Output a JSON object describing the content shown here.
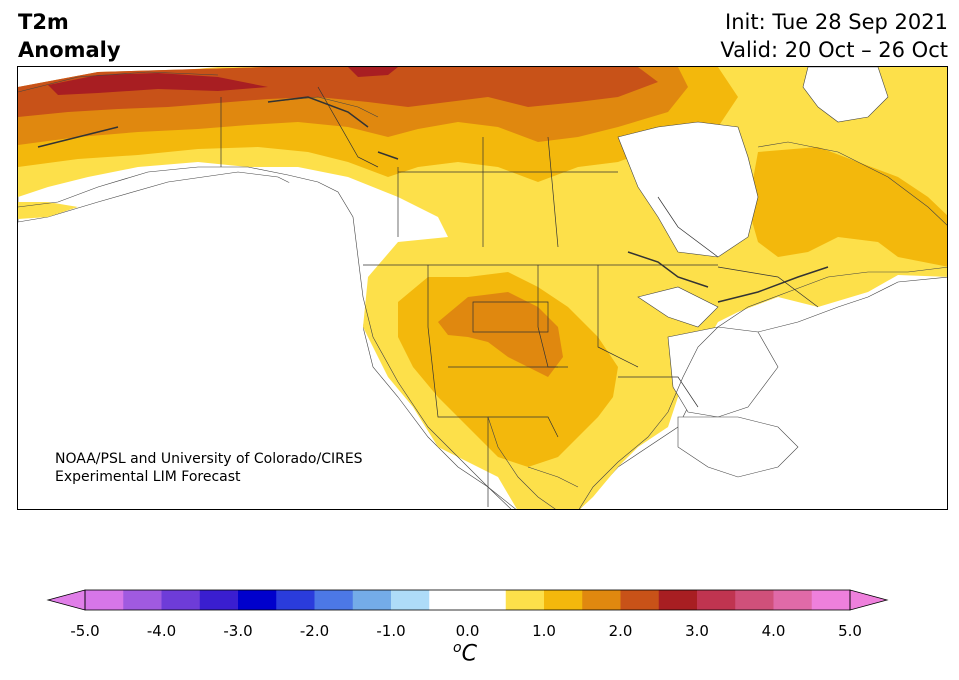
{
  "header": {
    "title_line1": "T2m",
    "title_line2": "Anomaly",
    "init": "Init: Tue 28 Sep 2021",
    "valid": "Valid: 20 Oct – 26 Oct"
  },
  "map": {
    "credit_line1": "NOAA/PSL and University of Colorado/CIRES",
    "credit_line2": "Experimental LIM Forecast",
    "region": "North America",
    "variable": "2m temperature anomaly"
  },
  "colorbar": {
    "unit_base": "C",
    "unit_sup": "o",
    "tick_labels": [
      "-5.0",
      "-4.0",
      "-3.0",
      "-2.0",
      "-1.0",
      "0.0",
      "1.0",
      "2.0",
      "3.0",
      "4.0",
      "5.0"
    ],
    "extend": "both",
    "colors": [
      "#d676e8",
      "#a05ae0",
      "#6e3cd8",
      "#3a1ed0",
      "#0000cc",
      "#2a3cdc",
      "#4c78e6",
      "#74ace8",
      "#aedcf8",
      "#ffffff",
      "#ffffff",
      "#fde04a",
      "#f3b80c",
      "#e0880f",
      "#c85218",
      "#a81e22",
      "#c03450",
      "#d0507a",
      "#e06aa8",
      "#ee80dc"
    ],
    "under_color": "#e07ee8",
    "over_color": "#ee80dc"
  },
  "legend_colors": {
    "c0_5": "#fde04a",
    "c1_0": "#f3b80c",
    "c1_5": "#e0880f",
    "c2_0": "#c85218",
    "c2_5": "#a81e22"
  }
}
